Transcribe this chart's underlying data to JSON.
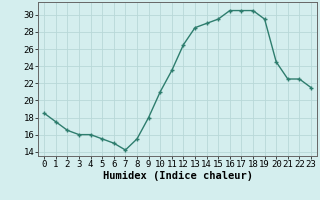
{
  "x": [
    0,
    1,
    2,
    3,
    4,
    5,
    6,
    7,
    8,
    9,
    10,
    11,
    12,
    13,
    14,
    15,
    16,
    17,
    18,
    19,
    20,
    21,
    22,
    23
  ],
  "y": [
    18.5,
    17.5,
    16.5,
    16.0,
    16.0,
    15.5,
    15.0,
    14.2,
    15.5,
    18.0,
    21.0,
    23.5,
    26.5,
    28.5,
    29.0,
    29.5,
    30.5,
    30.5,
    30.5,
    29.5,
    24.5,
    22.5,
    22.5,
    21.5
  ],
  "xlabel": "Humidex (Indice chaleur)",
  "xlim": [
    -0.5,
    23.5
  ],
  "ylim": [
    13.5,
    31.5
  ],
  "yticks": [
    14,
    16,
    18,
    20,
    22,
    24,
    26,
    28,
    30
  ],
  "xticks": [
    0,
    1,
    2,
    3,
    4,
    5,
    6,
    7,
    8,
    9,
    10,
    11,
    12,
    13,
    14,
    15,
    16,
    17,
    18,
    19,
    20,
    21,
    22,
    23
  ],
  "line_color": "#2e7d6e",
  "bg_color": "#d4eeee",
  "grid_color": "#b8d8d8",
  "tick_fontsize": 6.5,
  "label_fontsize": 7.5
}
